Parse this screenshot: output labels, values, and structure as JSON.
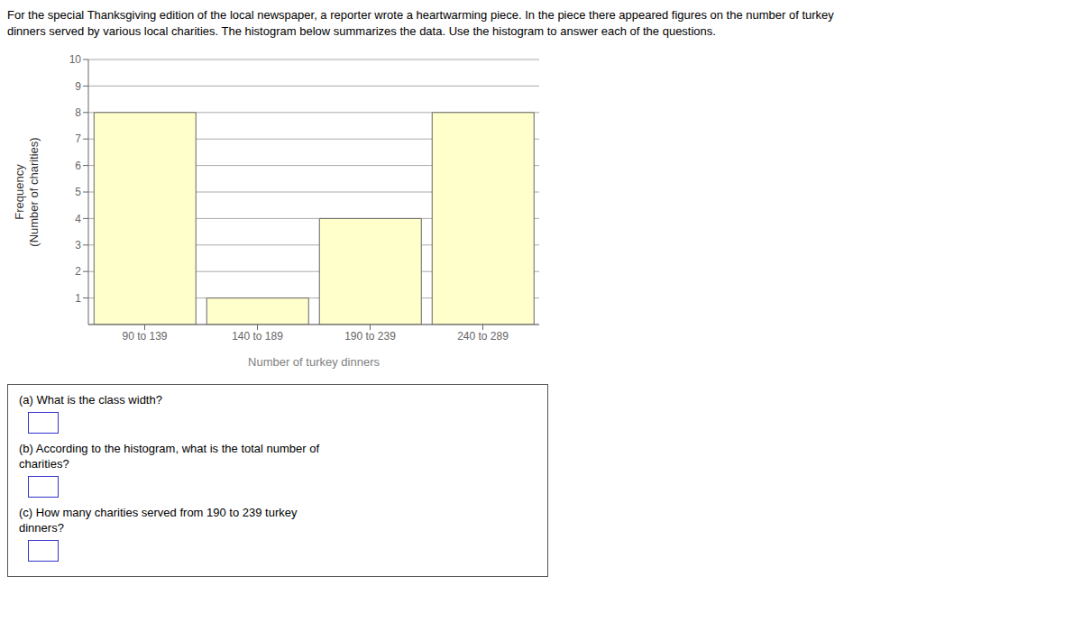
{
  "chart_data": {
    "type": "bar",
    "title": "For the special Thanksgiving edition of the local newspaper, a reporter wrote a heartwarming piece. In the piece there appeared figures on the number of turkey",
    "subtitle": "dinners served by various local charities. The histogram below summarizes the data. Use the histogram to answer each of the questions.",
    "xlabel": "Number of turkey dinners",
    "ylabel": "Frequency\n(Number of charities)",
    "categories": [
      "90 to 139",
      "140 to 189",
      "190 to 239",
      "240 to 289"
    ],
    "values": [
      8,
      1,
      4,
      8
    ],
    "color": "#ffffcc",
    "ylim": [
      0,
      10
    ],
    "yticks": [
      1,
      2,
      3,
      4,
      5,
      6,
      7,
      8,
      9,
      10
    ],
    "grid": true,
    "annotations": [
      "(a) What is the class width?",
      "(b) According to the histogram, what is the total number of\ncharities?",
      "(c) How many charities served from 190 to 239 turkey\ndinners?"
    ]
  }
}
